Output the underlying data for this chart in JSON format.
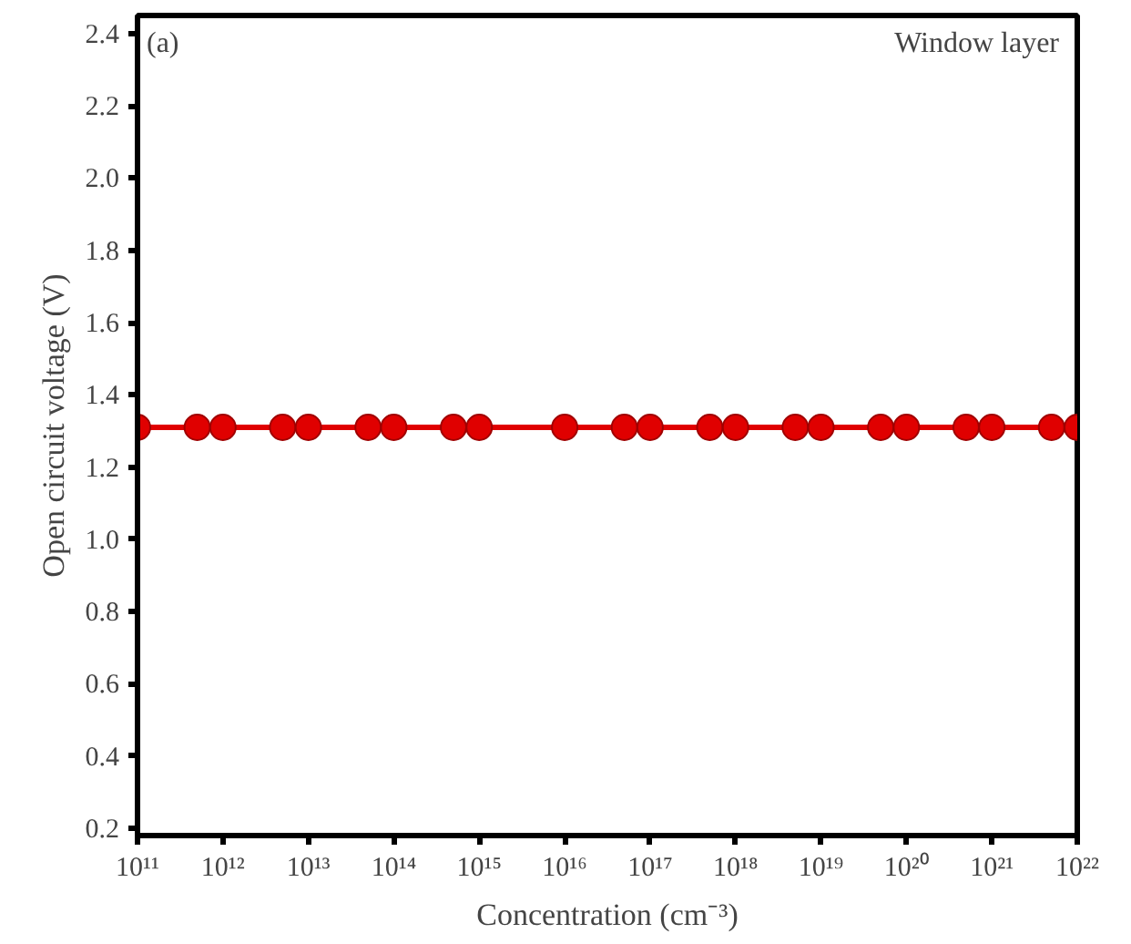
{
  "chart_data": {
    "type": "line",
    "xlabel": "Concentration (cm⁻³)",
    "ylabel": "Open circuit voltage (V)",
    "annotations": [
      "(a)",
      "Window layer"
    ],
    "x": [
      100000000000.0,
      500000000000.0,
      1000000000000.0,
      5000000000000.0,
      10000000000000.0,
      50000000000000.0,
      100000000000000.0,
      500000000000000.0,
      1000000000000000.0,
      1e+16,
      5e+16,
      1e+17,
      5e+17,
      1e+18,
      5e+18,
      1e+19,
      5e+19,
      1e+20,
      5e+20,
      1e+21,
      5e+21,
      1e+22
    ],
    "series": [
      {
        "color": "#e00000",
        "values": [
          1.31,
          1.31,
          1.31,
          1.31,
          1.31,
          1.31,
          1.31,
          1.31,
          1.31,
          1.31,
          1.31,
          1.31,
          1.31,
          1.31,
          1.31,
          1.31,
          1.31,
          1.31,
          1.31,
          1.31,
          1.31,
          1.31
        ]
      }
    ],
    "log": "x",
    "xlim": [
      100000000000.0,
      1e+22
    ],
    "xticks": [
      {
        "value": 100000000000.0,
        "label": "10¹¹"
      },
      {
        "value": 1000000000000.0,
        "label": "10¹²"
      },
      {
        "value": 10000000000000.0,
        "label": "10¹³"
      },
      {
        "value": 100000000000000.0,
        "label": "10¹⁴"
      },
      {
        "value": 1000000000000000.0,
        "label": "10¹⁵"
      },
      {
        "value": 1e+16,
        "label": "10¹⁶"
      },
      {
        "value": 1e+17,
        "label": "10¹⁷"
      },
      {
        "value": 1e+18,
        "label": "10¹⁸"
      },
      {
        "value": 1e+19,
        "label": "10¹⁹"
      },
      {
        "value": 1e+20,
        "label": "10²⁰"
      },
      {
        "value": 1e+21,
        "label": "10²¹"
      },
      {
        "value": 1e+22,
        "label": "10²²"
      }
    ],
    "ylim": [
      0.18,
      2.45
    ],
    "yticks": [
      {
        "value": 0.2,
        "label": "0.2"
      },
      {
        "value": 0.4,
        "label": "0.4"
      },
      {
        "value": 0.6,
        "label": "0.6"
      },
      {
        "value": 0.8,
        "label": "0.8"
      },
      {
        "value": 1.0,
        "label": "1.0"
      },
      {
        "value": 1.2,
        "label": "1.2"
      },
      {
        "value": 1.4,
        "label": "1.4"
      },
      {
        "value": 1.6,
        "label": "1.6"
      },
      {
        "value": 1.8,
        "label": "1.8"
      },
      {
        "value": 2.0,
        "label": "2.0"
      },
      {
        "value": 2.2,
        "label": "2.2"
      },
      {
        "value": 2.4,
        "label": "2.4"
      }
    ],
    "grid": false,
    "marker": "circle",
    "line_style": "solid"
  }
}
